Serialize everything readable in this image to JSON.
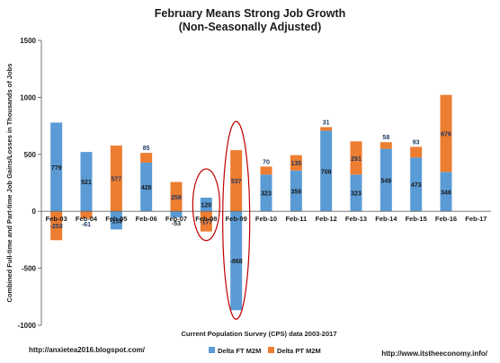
{
  "chart_data": {
    "type": "bar",
    "stacked": true,
    "title": "February Means Strong Job Growth",
    "subtitle": "(Non-Seasonally Adjusted)",
    "ylabel": "Combined Full-time and Part-time Job Gains/Losses in Thousands of Jobs",
    "xlabel": "Current Population Survey (CPS) data 2003-2017",
    "ylim": [
      -1000,
      1500
    ],
    "yticks": [
      -1000,
      -500,
      0,
      500,
      1000,
      1500
    ],
    "grid": false,
    "legend_position": "bottom",
    "categories": [
      "Feb-03",
      "Feb-04",
      "Feb-05",
      "Feb-06",
      "Feb-07",
      "Feb-08",
      "Feb-09",
      "Feb-10",
      "Feb-11",
      "Feb-12",
      "Feb-13",
      "Feb-14",
      "Feb-15",
      "Feb-16",
      "Feb-17"
    ],
    "series": [
      {
        "name": "Delta FT M2M",
        "color": "#5b9bd5",
        "values": [
          779,
          521,
          -159,
          428,
          -53,
          120,
          -868,
          323,
          358,
          708,
          323,
          549,
          473,
          346,
          null
        ]
      },
      {
        "name": "Delta PT M2M",
        "color": "#ed7d31",
        "values": [
          -253,
          -61,
          577,
          85,
          258,
          -177,
          537,
          70,
          135,
          31,
          291,
          58,
          93,
          676,
          null
        ]
      }
    ],
    "label_color_ft": "#1a1a1a",
    "label_color_pt": "#1f3864",
    "highlight_color": "#c00000",
    "highlighted_categories": [
      "Feb-08",
      "Feb-09"
    ]
  },
  "footer": {
    "left_url": "http://anxietea2016.blogspot.com/",
    "right_url": "http://www.itstheeconomy.info/"
  }
}
